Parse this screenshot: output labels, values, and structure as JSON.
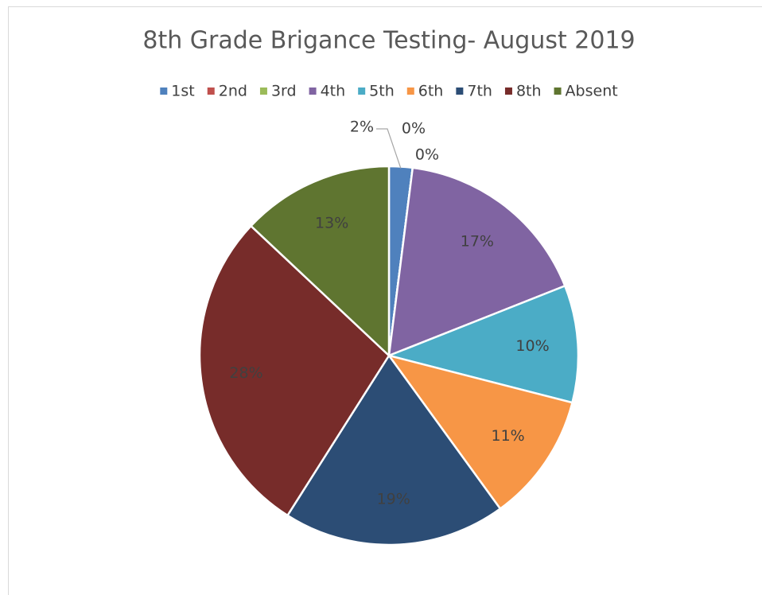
{
  "chart_data": {
    "type": "pie",
    "title": "8th Grade Brigance Testing- August 2019",
    "categories": [
      "1st",
      "2nd",
      "3rd",
      "4th",
      "5th",
      "6th",
      "7th",
      "8th",
      "Absent"
    ],
    "values": [
      2,
      0,
      0,
      17,
      10,
      11,
      19,
      28,
      13
    ],
    "value_labels": [
      "2%",
      "0%",
      "0%",
      "17%",
      "10%",
      "11%",
      "19%",
      "28%",
      "13%"
    ],
    "colors": [
      "#4f81bd",
      "#c0504d",
      "#9bbb59",
      "#8064a2",
      "#4bacc6",
      "#f79646",
      "#2c4d75",
      "#772c2a",
      "#5f7530"
    ],
    "legend": "top"
  }
}
